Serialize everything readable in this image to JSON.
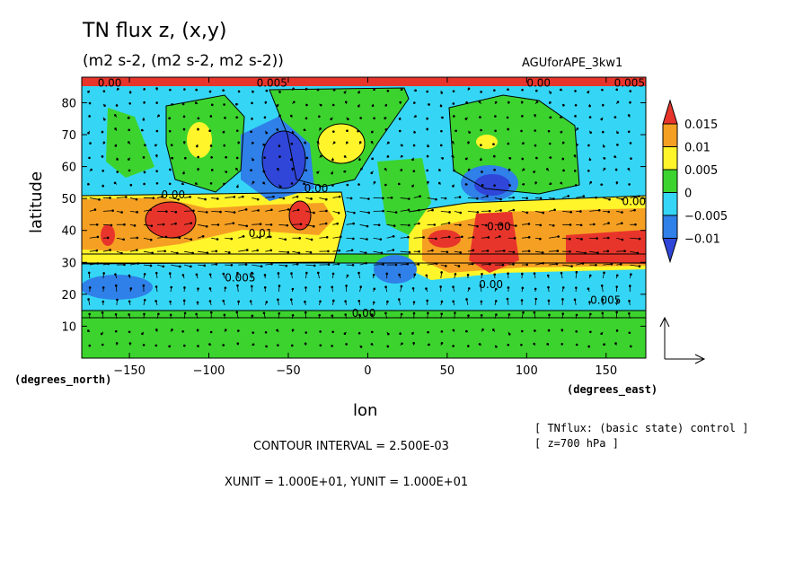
{
  "header": {
    "title": "TN flux z, (x,y)",
    "subtitle": "(m2 s-2, (m2 s-2, m2 s-2))",
    "run_label": "AGUforAPE_3kw1"
  },
  "footer": {
    "y_unit_note": "(degrees_north)",
    "x_unit_note": "(degrees_east)",
    "contour_note": "CONTOUR INTERVAL = 2.500E-03",
    "units_note": "XUNIT = 1.000E+01, YUNIT = 1.000E+01",
    "desc_line1": "[ TNflux: (basic state) control ]",
    "desc_line2": "[ z=700 hPa ]"
  },
  "chart_data": {
    "type": "heatmap",
    "title": "TN flux z, (x,y)",
    "xlabel": "lon",
    "ylabel": "latitude",
    "xlim": [
      -180,
      175
    ],
    "ylim": [
      0,
      88
    ],
    "xticks": [
      -150,
      -100,
      -50,
      0,
      50,
      100,
      150
    ],
    "yticks": [
      10,
      20,
      30,
      40,
      50,
      60,
      70,
      80
    ],
    "grid": false,
    "legend": "right",
    "colorbar": {
      "levels": [
        "0.015",
        "0.01",
        "0.005",
        "0",
        "−0.005",
        "−0.01"
      ],
      "colors": [
        "#e8352b",
        "#f5a023",
        "#fff52a",
        "#3cd32e",
        "#35d6f5",
        "#2f80e8",
        "#2f46d9"
      ]
    },
    "regions": [
      {
        "lon": [
          -180,
          175
        ],
        "lat": [
          0,
          14
        ],
        "value": 0.0
      },
      {
        "lon": [
          -180,
          175
        ],
        "lat": [
          14,
          27
        ],
        "value": -0.003
      },
      {
        "lon": [
          -180,
          -40
        ],
        "lat": [
          29,
          50
        ],
        "value": 0.006
      },
      {
        "lon": [
          -180,
          -60
        ],
        "lat": [
          34,
          48
        ],
        "value": 0.011
      },
      {
        "lon": [
          -135,
          -110
        ],
        "lat": [
          37,
          46
        ],
        "value": 0.016
      },
      {
        "lon": [
          -48,
          -33
        ],
        "lat": [
          37,
          46
        ],
        "value": 0.016
      },
      {
        "lon": [
          -175,
          -160
        ],
        "lat": [
          36,
          43
        ],
        "value": 0.016
      },
      {
        "lon": [
          30,
          175
        ],
        "lat": [
          27,
          50
        ],
        "value": 0.006
      },
      {
        "lon": [
          45,
          175
        ],
        "lat": [
          29,
          46
        ],
        "value": 0.011
      },
      {
        "lon": [
          120,
          175
        ],
        "lat": [
          30,
          42
        ],
        "value": 0.016
      },
      {
        "lon": [
          70,
          95
        ],
        "lat": [
          30,
          45
        ],
        "value": 0.016
      },
      {
        "lon": [
          -110,
          -85
        ],
        "lat": [
          58,
          80
        ],
        "value": 0.003
      },
      {
        "lon": [
          -30,
          -5
        ],
        "lat": [
          58,
          76
        ],
        "value": 0.006
      },
      {
        "lon": [
          60,
          90
        ],
        "lat": [
          60,
          78
        ],
        "value": 0.003
      },
      {
        "lon": [
          -75,
          -45
        ],
        "lat": [
          52,
          74
        ],
        "value": -0.012
      },
      {
        "lon": [
          60,
          95
        ],
        "lat": [
          50,
          60
        ],
        "value": -0.012
      }
    ],
    "contour_labels": [
      "0.00",
      "0.005",
      "0.00",
      "0.005",
      "0.00",
      "0.00",
      "0.01",
      "0.005",
      "0.00",
      "0.00",
      "0.005",
      "0.00",
      "0.005"
    ],
    "contour_interval": 0.0025
  }
}
